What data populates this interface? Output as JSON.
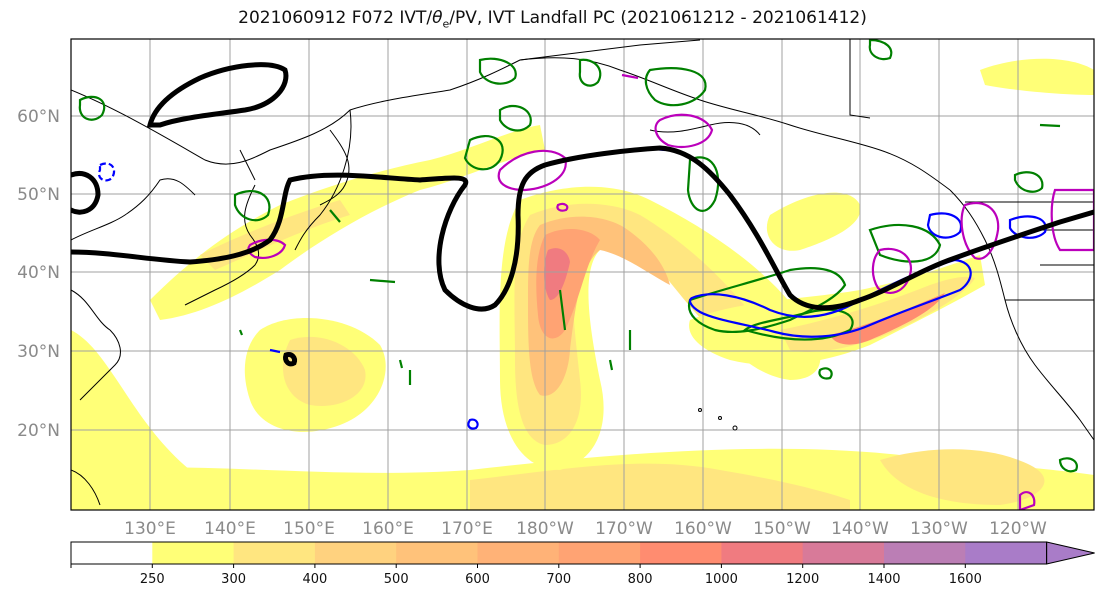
{
  "title": {
    "prefix": "2021060912 F072 IVT/",
    "theta": "θ",
    "sub": "e",
    "suffix": "/PV, IVT Landfall PC (2021061212 - 2021061412)"
  },
  "lat_labels": [
    "60°N",
    "50°N",
    "40°N",
    "30°N",
    "20°N"
  ],
  "lon_labels": [
    "130°E",
    "140°E",
    "150°E",
    "160°E",
    "170°E",
    "180°W",
    "170°W",
    "160°W",
    "150°W",
    "140°W",
    "130°W",
    "120°W"
  ],
  "colorbar": {
    "levels": [
      "250",
      "300",
      "400",
      "500",
      "600",
      "700",
      "800",
      "1000",
      "1200",
      "1400",
      "1600"
    ],
    "colors": [
      "#ffffff",
      "#ffff77",
      "#ffe680",
      "#ffd27f",
      "#ffc27a",
      "#ffb277",
      "#ffa373",
      "#ff8c70",
      "#f07b80",
      "#d87a99",
      "#bb7eb5",
      "#a97cc8"
    ]
  },
  "contour_colors": {
    "pv": "#000000",
    "theta_e": "#008000",
    "blue": "#0000ff",
    "magenta": "#bb00bb"
  }
}
